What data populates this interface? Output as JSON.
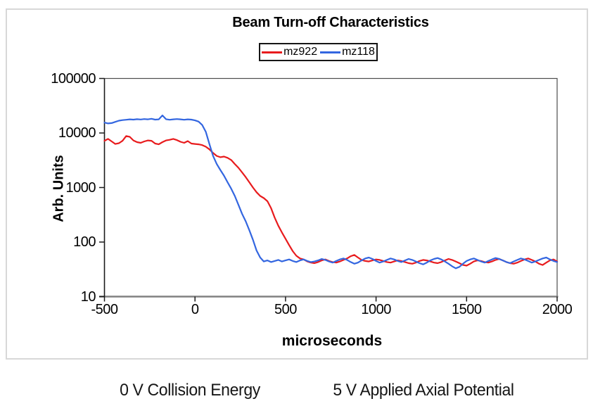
{
  "title": "Beam Turn-off Characteristics",
  "legend": [
    {
      "label": "mz922",
      "color": "#e81b1d"
    },
    {
      "label": "mz118",
      "color": "#3366e0"
    }
  ],
  "y_axis": {
    "title": "Arb. Units"
  },
  "x_axis": {
    "title": "microseconds"
  },
  "annotations": {
    "left": "0 V Collision Energy",
    "right": "5 V Applied Axial Potential"
  },
  "colors": {
    "mz922_line": "#e81b1d",
    "mz118_line": "#3366e0",
    "axis_line": "#808080",
    "plot_border": "#4d4d4d",
    "frame_border": "#d8d8d8"
  },
  "chart_data": {
    "type": "line",
    "title": "Beam Turn-off Characteristics",
    "xlabel": "microseconds",
    "ylabel": "Arb. Units",
    "xlim": [
      -500,
      2000
    ],
    "ylim": [
      10,
      100000
    ],
    "yscale": "log",
    "grid": false,
    "legend_position": "top-center",
    "x_ticks": [
      -500,
      0,
      500,
      1000,
      1500,
      2000
    ],
    "y_ticks": [
      10,
      100,
      1000,
      10000,
      100000
    ],
    "x_start": -500,
    "x_step": 20,
    "series": [
      {
        "name": "mz922",
        "color": "#e81b1d",
        "values": [
          7200,
          7800,
          7000,
          6300,
          6500,
          7200,
          8800,
          8500,
          7300,
          6800,
          6600,
          7000,
          7300,
          7200,
          6400,
          6200,
          6800,
          7300,
          7500,
          7800,
          7400,
          6900,
          6600,
          7100,
          6400,
          6300,
          6200,
          6000,
          5600,
          5000,
          4300,
          3800,
          3600,
          3700,
          3500,
          3200,
          2700,
          2300,
          1900,
          1550,
          1250,
          1000,
          820,
          700,
          640,
          560,
          420,
          280,
          200,
          150,
          115,
          88,
          68,
          56,
          50,
          48,
          44,
          42,
          41,
          43,
          46,
          48,
          45,
          43,
          42,
          44,
          47,
          50,
          55,
          58,
          52,
          47,
          45,
          44,
          46,
          48,
          47,
          45,
          43,
          42,
          44,
          46,
          45,
          43,
          41,
          40,
          42,
          45,
          47,
          46,
          44,
          42,
          41,
          43,
          46,
          49,
          47,
          44,
          41,
          38,
          37,
          40,
          44,
          46,
          45,
          43,
          42,
          44,
          47,
          49,
          46,
          43,
          41,
          40,
          42,
          45,
          48,
          50,
          47,
          44,
          40,
          38,
          42,
          46,
          48,
          44
        ]
      },
      {
        "name": "mz118",
        "color": "#3366e0",
        "values": [
          15500,
          15000,
          15200,
          16000,
          16800,
          17200,
          17500,
          17800,
          17600,
          17900,
          17700,
          18000,
          17800,
          18200,
          17600,
          17800,
          21000,
          17900,
          17500,
          17800,
          18000,
          17800,
          17500,
          17800,
          17600,
          17000,
          16200,
          14000,
          10500,
          6200,
          3800,
          2700,
          2100,
          1650,
          1250,
          950,
          700,
          480,
          330,
          240,
          165,
          110,
          70,
          52,
          44,
          46,
          43,
          45,
          47,
          44,
          46,
          48,
          45,
          43,
          46,
          48,
          45,
          43,
          44,
          46,
          49,
          47,
          44,
          42,
          45,
          48,
          50,
          47,
          43,
          40,
          42,
          46,
          50,
          52,
          49,
          45,
          42,
          44,
          47,
          50,
          48,
          45,
          43,
          46,
          49,
          47,
          44,
          41,
          39,
          42,
          46,
          49,
          51,
          48,
          44,
          40,
          36,
          33,
          35,
          40,
          45,
          48,
          50,
          47,
          44,
          42,
          45,
          48,
          51,
          49,
          46,
          43,
          41,
          44,
          47,
          50,
          48,
          45,
          42,
          44,
          47,
          50,
          52,
          48,
          45,
          43
        ]
      }
    ]
  }
}
